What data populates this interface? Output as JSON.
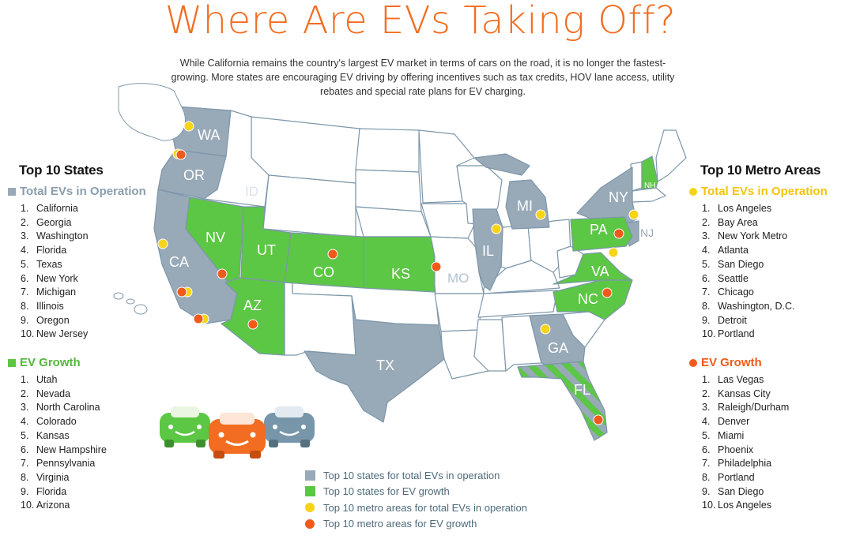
{
  "title": "Where Are EVs Taking Off?",
  "intro": "While California remains the country's largest EV market in terms of cars on the road, it is no longer the fastest-growing. More states are encouraging EV driving by offering incentives such as tax credits, HOV lane access, utility rebates and special rate plans for EV charging.",
  "colors": {
    "title_orange": "#f26d21",
    "gray_state": "#98a9b8",
    "green_state": "#5cc645",
    "plain_state": "#ffffff",
    "state_border": "#7d97ab",
    "yellow_dot": "#f7d417",
    "orange_dot": "#f05a1a",
    "legend_text": "#4d6b7c"
  },
  "left_panel": {
    "heading": "Top 10 States",
    "total_heading": "Total EVs in Operation",
    "total_list": [
      "California",
      "Georgia",
      "Washington",
      "Florida",
      "Texas",
      "New York",
      "Michigan",
      "Illinois",
      "Oregon",
      "New Jersey"
    ],
    "growth_heading": "EV Growth",
    "growth_list": [
      "Utah",
      "Nevada",
      "North Carolina",
      "Colorado",
      "Kansas",
      "New Hampshire",
      "Pennsylvania",
      "Virginia",
      "Florida",
      "Arizona"
    ]
  },
  "right_panel": {
    "heading": "Top 10 Metro Areas",
    "total_heading": "Total EVs in Operation",
    "total_list": [
      "Los Angeles",
      "Bay Area",
      "New York Metro",
      "Atlanta",
      "San Diego",
      "Seattle",
      "Chicago",
      "Washington, D.C.",
      "Detroit",
      "Portland"
    ],
    "growth_heading": "EV Growth",
    "growth_list": [
      "Las Vegas",
      "Kansas City",
      "Raleigh/Durham",
      "Denver",
      "Miami",
      "Phoenix",
      "Philadelphia",
      "Portland",
      "San Diego",
      "Los Angeles"
    ]
  },
  "map": {
    "state_labels": {
      "wa": "WA",
      "or": "OR",
      "id": "ID",
      "ca": "CA",
      "nv": "NV",
      "ut": "UT",
      "az": "AZ",
      "co": "CO",
      "ks": "KS",
      "mo": "MO",
      "tx": "TX",
      "il": "IL",
      "mi": "MI",
      "ga": "GA",
      "fl": "FL",
      "nc": "NC",
      "va": "VA",
      "pa": "PA",
      "ny": "NY",
      "nj": "NJ",
      "nh": "NH"
    },
    "gray_states": [
      "WA",
      "OR",
      "CA",
      "TX",
      "IL",
      "MI",
      "GA",
      "NY",
      "NJ",
      "FL"
    ],
    "green_states": [
      "NV",
      "UT",
      "AZ",
      "CO",
      "KS",
      "NC",
      "VA",
      "PA",
      "NH",
      "FL"
    ],
    "plain_labeled_states": [
      "ID",
      "MO"
    ],
    "car_icons": [
      "green-car-icon",
      "orange-car-icon",
      "gray-car-icon"
    ]
  },
  "legend": [
    {
      "label": "Top 10 states for total EVs in operation",
      "kind": "square",
      "color": "#98a9b8"
    },
    {
      "label": "Top 10 states for EV growth",
      "kind": "square",
      "color": "#5cc645"
    },
    {
      "label": "Top 10 metro areas for total EVs in operation",
      "kind": "dot",
      "color": "#f7d417"
    },
    {
      "label": "Top 10 metro areas for EV growth",
      "kind": "dot",
      "color": "#f05a1a"
    }
  ]
}
